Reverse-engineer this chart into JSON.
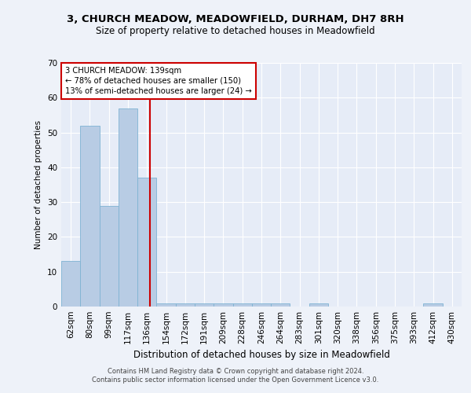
{
  "title1": "3, CHURCH MEADOW, MEADOWFIELD, DURHAM, DH7 8RH",
  "title2": "Size of property relative to detached houses in Meadowfield",
  "xlabel": "Distribution of detached houses by size in Meadowfield",
  "ylabel": "Number of detached properties",
  "categories": [
    "62sqm",
    "80sqm",
    "99sqm",
    "117sqm",
    "136sqm",
    "154sqm",
    "172sqm",
    "191sqm",
    "209sqm",
    "228sqm",
    "246sqm",
    "264sqm",
    "283sqm",
    "301sqm",
    "320sqm",
    "338sqm",
    "356sqm",
    "375sqm",
    "393sqm",
    "412sqm",
    "430sqm"
  ],
  "values": [
    13,
    52,
    29,
    57,
    37,
    1,
    1,
    1,
    1,
    1,
    1,
    1,
    0,
    1,
    0,
    0,
    0,
    0,
    0,
    1,
    0
  ],
  "bar_color": "#b8cce4",
  "bar_edge_color": "#7fb3d3",
  "vline_color": "#cc0000",
  "vline_pos": 4.15,
  "annotation_box_color": "#cc0000",
  "annotation_text_line1": "3 CHURCH MEADOW: 139sqm",
  "annotation_text_line2": "← 78% of detached houses are smaller (150)",
  "annotation_text_line3": "13% of semi-detached houses are larger (24) →",
  "ylim": [
    0,
    70
  ],
  "yticks": [
    0,
    10,
    20,
    30,
    40,
    50,
    60,
    70
  ],
  "footer1": "Contains HM Land Registry data © Crown copyright and database right 2024.",
  "footer2": "Contains public sector information licensed under the Open Government Licence v3.0.",
  "background_color": "#eef2f9",
  "plot_bg_color": "#e6ecf7"
}
